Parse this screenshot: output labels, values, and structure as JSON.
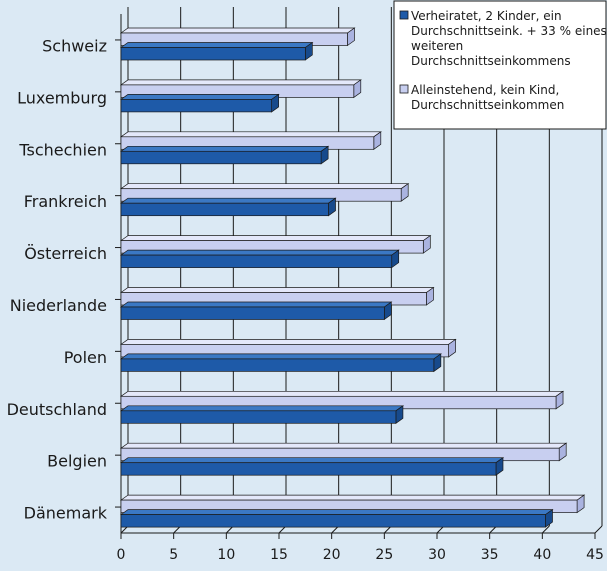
{
  "chart_data": {
    "type": "bar",
    "orientation": "horizontal",
    "categories": [
      "Schweiz",
      "Luxemburg",
      "Tschechien",
      "Frankreich",
      "Österreich",
      "Niederlande",
      "Polen",
      "Deutschland",
      "Belgien",
      "Dänemark"
    ],
    "series": [
      {
        "name": "Verheiratet, 2 Kinder, ein Durchschnittseink. + 33 % eines weiteren Durchschnittseinkommens",
        "legend_lines": [
          "Verheiratet, 2 Kinder, ein",
          "Durchschnittseink. + 33 % eines",
          "weiteren",
          "Durchschnittseinkommens"
        ],
        "color": "#1e5aa8",
        "values": [
          17.5,
          14.3,
          19.0,
          19.7,
          25.7,
          25.0,
          29.7,
          26.1,
          35.6,
          40.3
        ]
      },
      {
        "name": "Alleinstehend, kein Kind, Durchschnittseinkommen",
        "legend_lines": [
          "Alleinstehend, kein Kind,",
          "Durchschnittseinkommen"
        ],
        "color": "#c8cff0",
        "values": [
          21.5,
          22.1,
          24.0,
          26.6,
          28.7,
          29.0,
          31.1,
          41.3,
          41.6,
          43.3
        ]
      }
    ],
    "x_ticks": [
      "0",
      "5",
      "10",
      "15",
      "20",
      "25",
      "30",
      "35",
      "40",
      "45"
    ],
    "xlim": [
      0,
      45
    ],
    "grid": true,
    "legend_position": "top-right"
  }
}
